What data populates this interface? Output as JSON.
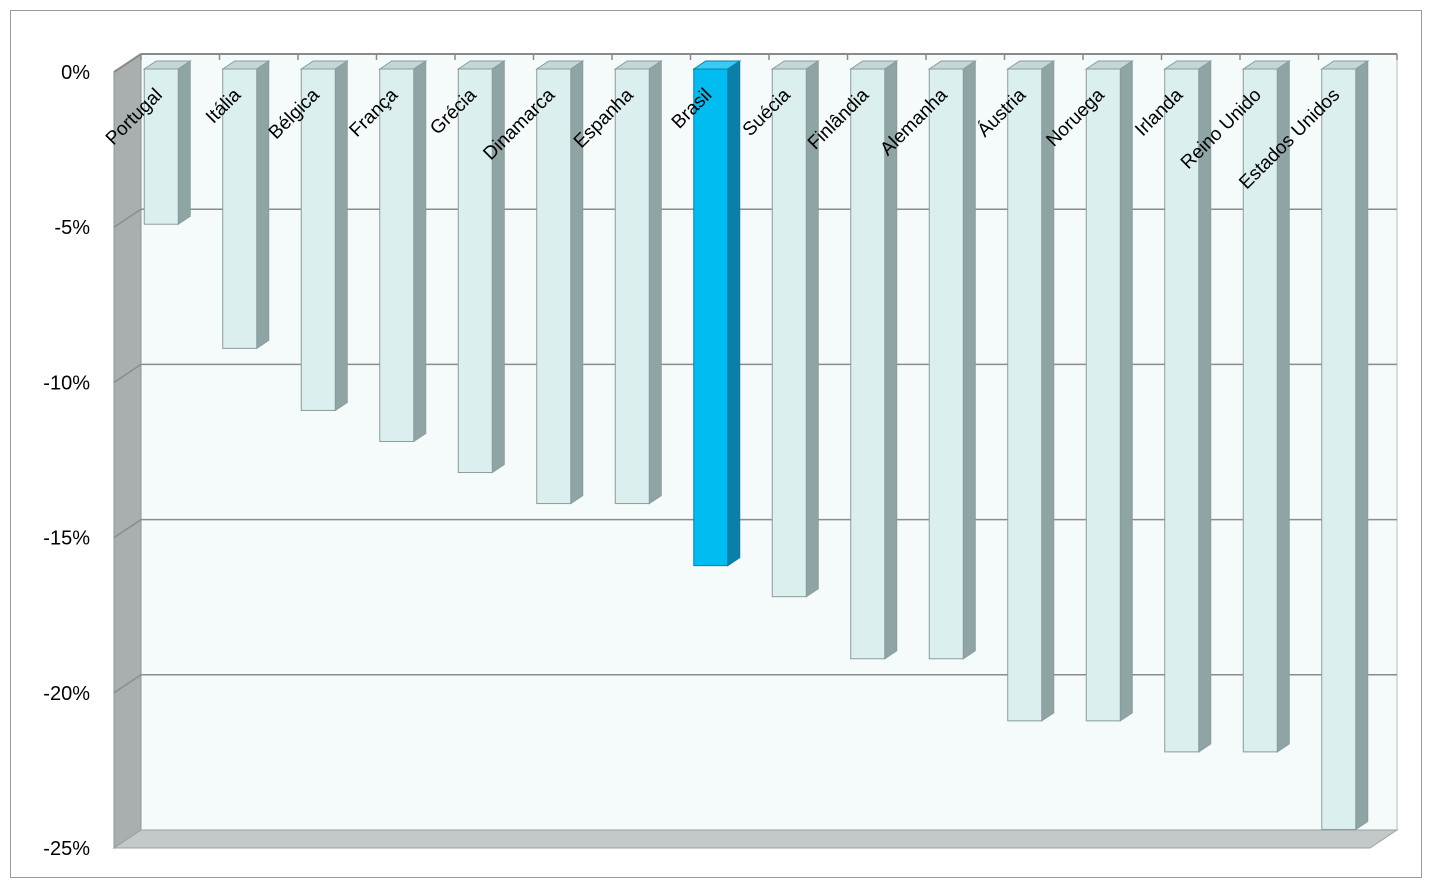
{
  "chart_data": {
    "type": "bar",
    "orientation": "vertical",
    "style": "3d-column",
    "categories": [
      "Portugal",
      "Itália",
      "Bélgica",
      "França",
      "Grécia",
      "Dinamarca",
      "Espanha",
      "Brasil",
      "Suécia",
      "Finlândia",
      "Alemanha",
      "Áustria",
      "Noruega",
      "Irlanda",
      "Reino Unido",
      "Estados Unidos"
    ],
    "series": [
      {
        "values": [
          -5,
          -9,
          -11,
          -12,
          -13,
          -14,
          -14,
          -16,
          -17,
          -19,
          -19,
          -21,
          -21,
          -22,
          -22,
          -24.5
        ]
      }
    ],
    "highlight_category": "Brasil",
    "ylim": [
      -25,
      0
    ],
    "yticks": [
      0,
      -5,
      -10,
      -15,
      -20,
      -25
    ],
    "ytick_labels": [
      "0%",
      "-5%",
      "-10%",
      "-15%",
      "-20%",
      "-25%"
    ],
    "title": "",
    "xlabel": "",
    "ylabel": "",
    "grid": true,
    "legend": "none",
    "colors": {
      "bar_front": "#dcefef",
      "bar_side": "#8fa4a4",
      "bar_top": "#c4d6d6",
      "bar_border": "#8a9c9c",
      "highlight_front": "#00bcf0",
      "highlight_side": "#0a7fa8",
      "highlight_top": "#38ccf5",
      "wall": "#f5fafb",
      "wall_side": "#a9aeae",
      "floor": "#c3c8c8",
      "gridline": "#8c8c8c"
    }
  }
}
